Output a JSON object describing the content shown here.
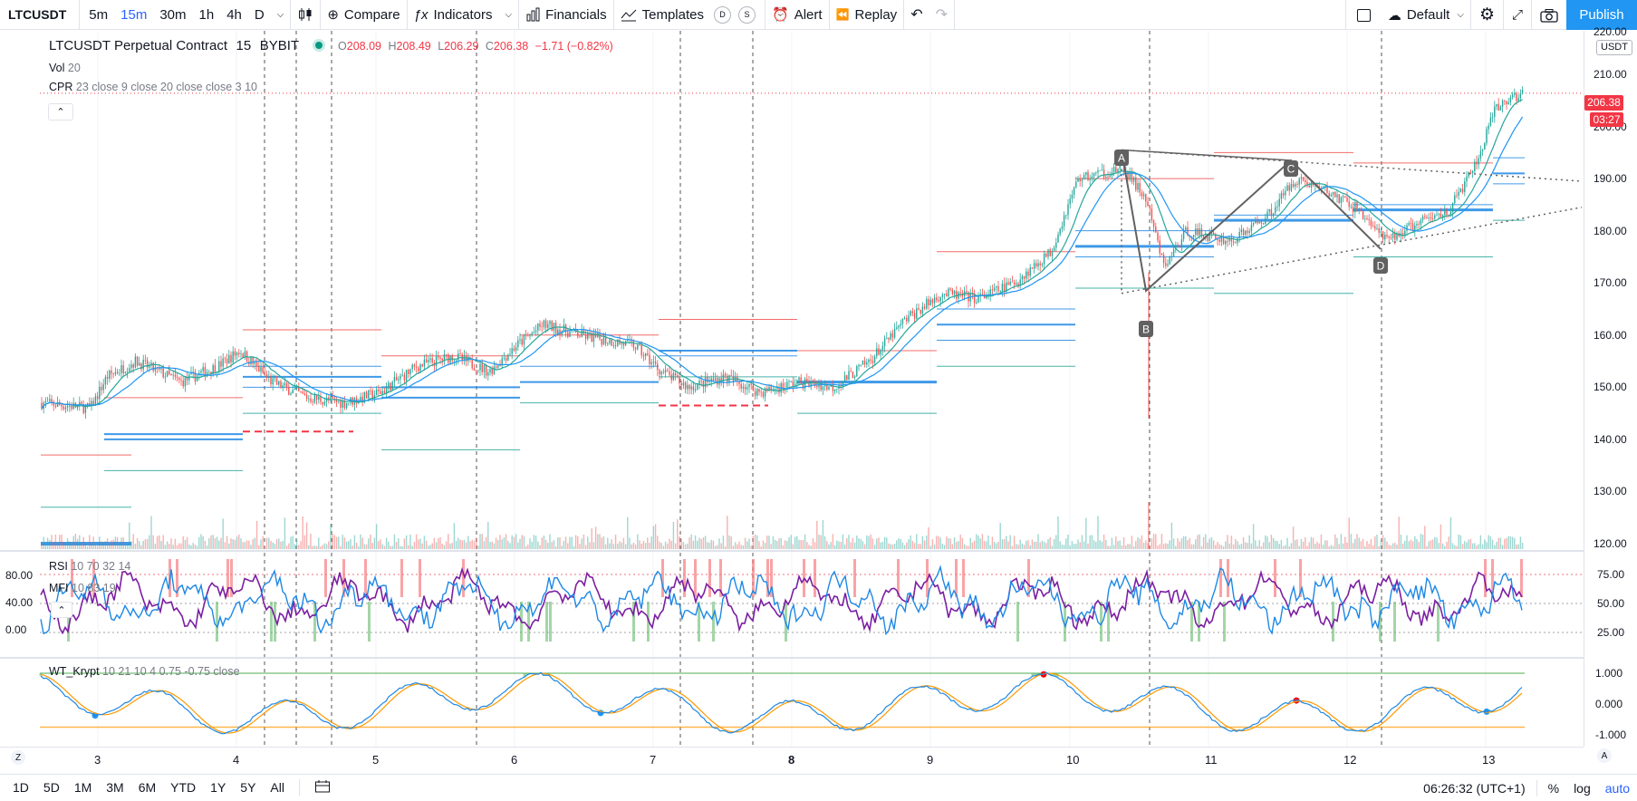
{
  "toolbar": {
    "symbol": "LTCUSDT",
    "intervals": [
      "5m",
      "15m",
      "30m",
      "1h",
      "4h",
      "D"
    ],
    "active_interval": "15m",
    "compare_label": "Compare",
    "indicators_label": "Indicators",
    "financials_label": "Financials",
    "templates_label": "Templates",
    "d_badge": "D",
    "s_badge": "S",
    "alert_label": "Alert",
    "replay_label": "Replay",
    "layout_label": "Default",
    "publish_label": "Publish"
  },
  "legend": {
    "title": "LTCUSDT Perpetual Contract",
    "interval": "15",
    "exchange": "BYBIT",
    "open_label": "O",
    "open": "208.09",
    "high_label": "H",
    "high": "208.49",
    "low_label": "L",
    "low": "206.29",
    "close_label": "C",
    "close": "206.38",
    "change": "−1.71 (−0.82%)",
    "vol_name": "Vol",
    "vol_params": "20",
    "cpr_name": "CPR",
    "cpr_params": "23 close 9 close 20 close close 3 10",
    "rsi_name": "RSI",
    "rsi_params": "10 70 32 14",
    "mfi_name": "MFI",
    "mfi_params": "10 83 19",
    "wt_name": "WT_Krypt",
    "wt_params": "10 21 10 4 0.75 -0.75 close"
  },
  "price_axis": {
    "labels": [
      "210.00",
      "200.00",
      "190.00",
      "180.00",
      "170.00",
      "160.00",
      "150.00",
      "140.00",
      "130.00",
      "120.00"
    ],
    "top_partial": "220.00",
    "currency": "USDT",
    "last_price": "206.38",
    "countdown": "03:27",
    "rsi_labels": [
      "75.00",
      "50.00",
      "25.00"
    ],
    "rsi_left_labels": [
      "80.00",
      "40.00",
      "0.00"
    ],
    "wt_labels": [
      "1.000",
      "0.000",
      "-1.000"
    ]
  },
  "time_axis": {
    "labels": [
      "3",
      "4",
      "5",
      "6",
      "7",
      "8",
      "9",
      "10",
      "11",
      "12",
      "13"
    ],
    "bold_label": "8"
  },
  "pattern": {
    "points": [
      "A",
      "B",
      "C",
      "D"
    ]
  },
  "bottom": {
    "ranges": [
      "1D",
      "5D",
      "1M",
      "3M",
      "6M",
      "YTD",
      "1Y",
      "5Y",
      "All"
    ],
    "clock": "06:26:32 (UTC+1)",
    "percent": "%",
    "log": "log",
    "auto": "auto"
  },
  "chart_data": {
    "type": "line",
    "x": [
      "3",
      "4",
      "5",
      "6",
      "7",
      "8",
      "9",
      "10",
      "11",
      "12",
      "13"
    ],
    "series": [
      {
        "values": [
          147,
          151,
          148,
          157,
          150,
          150,
          168,
          188,
          178,
          185,
          206
        ]
      }
    ],
    "ylim": [
      118,
      221
    ],
    "colors": {
      "up": "#26a69a",
      "down": "#ef5350",
      "ma": "#2196f3",
      "ma2": "#26a69a"
    }
  },
  "colors": {
    "accent": "#2962ff",
    "publish": "#2196f3",
    "up": "#26a69a",
    "down": "#ef5350",
    "rsi": "#7b1fa2",
    "mfi": "#1e88e5"
  }
}
